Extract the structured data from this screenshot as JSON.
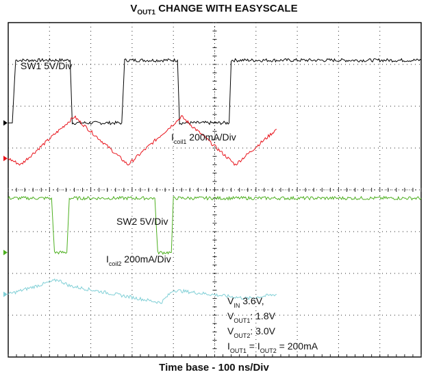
{
  "title": {
    "main": "V",
    "sub": "OUT1",
    "rest": " CHANGE WITH EASYSCALE"
  },
  "xlabel": "Time base - 100 ns/Div",
  "colors": {
    "sw1": "#000000",
    "icoil1": "#e8121a",
    "sw2": "#4caf1e",
    "icoil2": "#7fcfd6",
    "grid": "#222222",
    "frame": "#000000"
  },
  "chart_data": {
    "type": "line",
    "grid": true,
    "x_divisions": 10,
    "y_divisions": 8,
    "x_unit": "ns",
    "x_per_div": 100,
    "channels": [
      {
        "name": "SW1 5V/Div",
        "color_key": "sw1",
        "label_main": "SW1 5V/Div",
        "label_sub": "",
        "label_tail": "",
        "levels_div": {
          "high": 7.1,
          "low": 5.6
        },
        "x": [
          0,
          0.1,
          0.18,
          1.5,
          1.55,
          2.75,
          2.82,
          4.1,
          4.15,
          5.35,
          5.4,
          10
        ],
        "y": [
          5.6,
          5.6,
          7.1,
          7.1,
          5.6,
          5.6,
          7.1,
          7.1,
          5.6,
          5.6,
          7.1,
          7.1
        ]
      },
      {
        "name": "Icoil1 200mA/Div",
        "color_key": "icoil1",
        "label_main": "I",
        "label_sub": "coil1",
        "label_tail": " 200mA/Div",
        "x": [
          0,
          0.3,
          1.6,
          2.9,
          4.2,
          5.5,
          6.5
        ],
        "y": [
          4.75,
          4.6,
          5.75,
          4.6,
          5.75,
          4.6,
          5.45
        ]
      },
      {
        "name": "SW2 5V/Div",
        "color_key": "sw2",
        "label_main": "SW2 5V/Div",
        "label_sub": "",
        "label_tail": "",
        "levels_div": {
          "high": 3.8,
          "low": 2.5
        },
        "x": [
          0,
          1.05,
          1.12,
          1.42,
          1.48,
          3.55,
          3.62,
          3.95,
          4.0,
          10
        ],
        "y": [
          3.8,
          3.8,
          2.5,
          2.5,
          3.8,
          3.8,
          2.5,
          2.5,
          3.8,
          3.8
        ]
      },
      {
        "name": "Icoil2 200mA/Div",
        "color_key": "icoil2",
        "label_main": "I",
        "label_sub": "coil2",
        "label_tail": " 200mA/Div",
        "x": [
          0,
          1.2,
          1.5,
          3.7,
          4.0,
          5.8,
          6.5
        ],
        "y": [
          1.5,
          1.85,
          1.7,
          1.3,
          1.6,
          1.4,
          1.5
        ]
      }
    ],
    "annotations": [
      {
        "parts": [
          [
            "V",
            ""
          ],
          [
            "IN",
            "sub"
          ],
          [
            " 3.6V,",
            ""
          ]
        ]
      },
      {
        "parts": [
          [
            "V",
            ""
          ],
          [
            "OUT1",
            "sub"
          ],
          [
            ": 1.8V",
            ""
          ]
        ]
      },
      {
        "parts": [
          [
            "V",
            ""
          ],
          [
            "OUT2",
            "sub"
          ],
          [
            ": 3.0V",
            ""
          ]
        ]
      },
      {
        "parts": [
          [
            "I",
            ""
          ],
          [
            "OUT1",
            "sub"
          ],
          [
            " = I",
            ""
          ],
          [
            "OUT2",
            "sub"
          ],
          [
            " = 200mA",
            ""
          ]
        ]
      }
    ]
  }
}
